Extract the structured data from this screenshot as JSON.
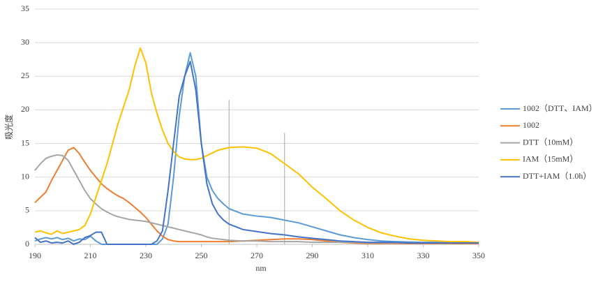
{
  "chart_data": {
    "type": "line",
    "x_label": "nm",
    "y_label": "吸光度",
    "x": [
      190,
      192,
      194,
      196,
      198,
      200,
      202,
      204,
      206,
      208,
      210,
      212,
      214,
      216,
      218,
      220,
      222,
      224,
      226,
      228,
      230,
      232,
      234,
      236,
      238,
      240,
      242,
      244,
      246,
      248,
      250,
      252,
      254,
      256,
      258,
      260,
      265,
      270,
      275,
      280,
      285,
      290,
      295,
      300,
      305,
      310,
      315,
      320,
      325,
      330,
      335,
      340,
      345,
      350
    ],
    "xlim": [
      190,
      350
    ],
    "xticks": [
      190,
      210,
      230,
      250,
      270,
      290,
      310,
      330,
      350
    ],
    "ylim": [
      0,
      35
    ],
    "yticks": [
      0,
      5,
      10,
      15,
      20,
      25,
      30,
      35
    ],
    "grid": true,
    "legend": "right",
    "reference_lines": [
      {
        "x": 260,
        "y": 21.5
      },
      {
        "x": 280,
        "y": 16.6
      }
    ],
    "series": [
      {
        "name": "1002（DTT、IAM）",
        "color": "#5b9bd5",
        "values": [
          0.5,
          0.8,
          1,
          0.8,
          1,
          0.7,
          0.9,
          0.5,
          0.8,
          0.7,
          1.2,
          0.5,
          0,
          0,
          0,
          0,
          0,
          0,
          0,
          0,
          0,
          0,
          0,
          0.8,
          3,
          10,
          19,
          25,
          28.5,
          25,
          15,
          10,
          8,
          6.8,
          6,
          5.3,
          4.5,
          4.2,
          4,
          3.6,
          3.2,
          2.6,
          2,
          1.4,
          1,
          0.7,
          0.5,
          0.4,
          0.35,
          0.3,
          0.3,
          0.3,
          0.3,
          0.3
        ]
      },
      {
        "name": "1002",
        "color": "#ed7d31",
        "values": [
          6.2,
          7,
          7.8,
          9.5,
          11,
          12.5,
          14,
          14.4,
          13.5,
          12.2,
          11,
          10,
          9,
          8.3,
          7.7,
          7.2,
          6.8,
          6.2,
          5.5,
          4.8,
          4,
          3,
          2,
          1.2,
          0.7,
          0.5,
          0.4,
          0.4,
          0.4,
          0.4,
          0.4,
          0.4,
          0.4,
          0.4,
          0.4,
          0.4,
          0.5,
          0.6,
          0.7,
          0.8,
          0.8,
          0.7,
          0.5,
          0.3,
          0.2,
          0.1,
          0.1,
          0.1,
          0.1,
          0.1,
          0.1,
          0.1,
          0.1,
          0.1
        ]
      },
      {
        "name": "DTT（10mM）",
        "color": "#a5a5a5",
        "values": [
          11,
          12,
          12.8,
          13.1,
          13.3,
          13.2,
          12.5,
          11,
          9.5,
          8,
          6.8,
          6,
          5.3,
          4.8,
          4.4,
          4.1,
          3.9,
          3.7,
          3.6,
          3.5,
          3.4,
          3.2,
          3,
          2.8,
          2.6,
          2.4,
          2.2,
          2,
          1.8,
          1.6,
          1.4,
          1.1,
          0.9,
          0.8,
          0.7,
          0.6,
          0.5,
          0.5,
          0.4,
          0.4,
          0.4,
          0.3,
          0.3,
          0.3,
          0.3,
          0.2,
          0.2,
          0.2,
          0.2,
          0.2,
          0.2,
          0.2,
          0.2,
          0.2
        ]
      },
      {
        "name": "IAM（15mM）",
        "color": "#ffc000",
        "values": [
          1.8,
          2,
          1.7,
          1.5,
          2,
          1.6,
          1.8,
          2,
          2.2,
          2.8,
          4.5,
          7,
          9.5,
          12,
          15,
          18,
          20.5,
          23,
          26.5,
          29.2,
          27,
          22.5,
          19.5,
          17,
          15,
          13.8,
          13,
          12.7,
          12.6,
          12.6,
          12.8,
          13.2,
          13.6,
          14,
          14.2,
          14.4,
          14.5,
          14.3,
          13.5,
          12,
          10.5,
          8.5,
          6.8,
          5,
          3.6,
          2.5,
          1.7,
          1.2,
          0.8,
          0.6,
          0.5,
          0.4,
          0.4,
          0.3
        ]
      },
      {
        "name": "DTT+IAM（1.0h）",
        "color": "#4472c4",
        "values": [
          1,
          0.3,
          0.5,
          0.2,
          0.3,
          0.2,
          0.5,
          0,
          0.3,
          1,
          1.3,
          1.8,
          1.8,
          0,
          0,
          0,
          0,
          0,
          0,
          0,
          0,
          0,
          0.5,
          2,
          8,
          15,
          22,
          25,
          27.2,
          23,
          15,
          9,
          6,
          4.5,
          3.6,
          3,
          2.2,
          1.9,
          1.6,
          1.4,
          1.1,
          0.9,
          0.7,
          0.5,
          0.4,
          0.3,
          0.3,
          0.3,
          0.2,
          0.2,
          0.2,
          0.2,
          0.2,
          0.2
        ]
      }
    ]
  }
}
